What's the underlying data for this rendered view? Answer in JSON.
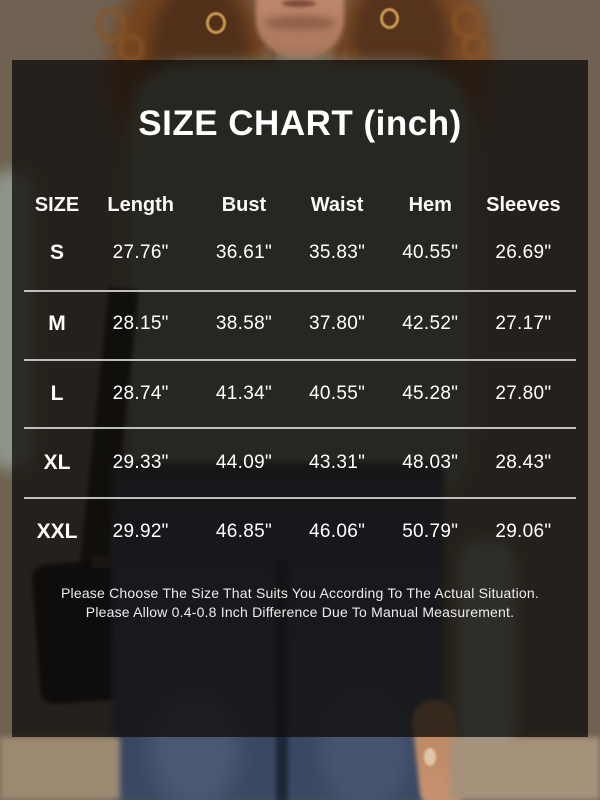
{
  "chart_data": {
    "type": "table",
    "title": "SIZE CHART (inch)",
    "unit": "inch",
    "columns": [
      "SIZE",
      "Length",
      "Bust",
      "Waist",
      "Hem",
      "Sleeves"
    ],
    "rows": [
      {
        "size": "S",
        "values": [
          "27.76\"",
          "36.61\"",
          "35.83\"",
          "40.55\"",
          "26.69\""
        ]
      },
      {
        "size": "M",
        "values": [
          "28.15\"",
          "38.58\"",
          "37.80\"",
          "42.52\"",
          "27.17\""
        ]
      },
      {
        "size": "L",
        "values": [
          "28.74\"",
          "41.34\"",
          "40.55\"",
          "45.28\"",
          "27.80\""
        ]
      },
      {
        "size": "XL",
        "values": [
          "29.33\"",
          "44.09\"",
          "43.31\"",
          "48.03\"",
          "28.43\""
        ]
      },
      {
        "size": "XXL",
        "values": [
          "29.92\"",
          "46.85\"",
          "46.06\"",
          "50.79\"",
          "29.06\""
        ]
      }
    ],
    "notes": [
      "Please Choose The Size That Suits You According To The Actual Situation.",
      "Please Allow 0.4-0.8 Inch Difference Due To Manual Measurement."
    ],
    "layout_hints": {
      "legend": "none",
      "grid": "horizontal-dividers-between-rows"
    }
  },
  "colors": {
    "panel_overlay": "#110e0b",
    "text": "#ffffff",
    "divider": "#c8c8c6",
    "wall_tan": "#7d6d5a",
    "hair_auburn": "#7b4a26",
    "shirt_sage": "#79826f",
    "jeans_blue": "#35425c"
  },
  "photo": {
    "description_elements": [
      "woman-model",
      "curly-hair",
      "hoop-earrings",
      "sage-green-shirt",
      "blue-jeans",
      "black-shoulder-bag"
    ]
  }
}
